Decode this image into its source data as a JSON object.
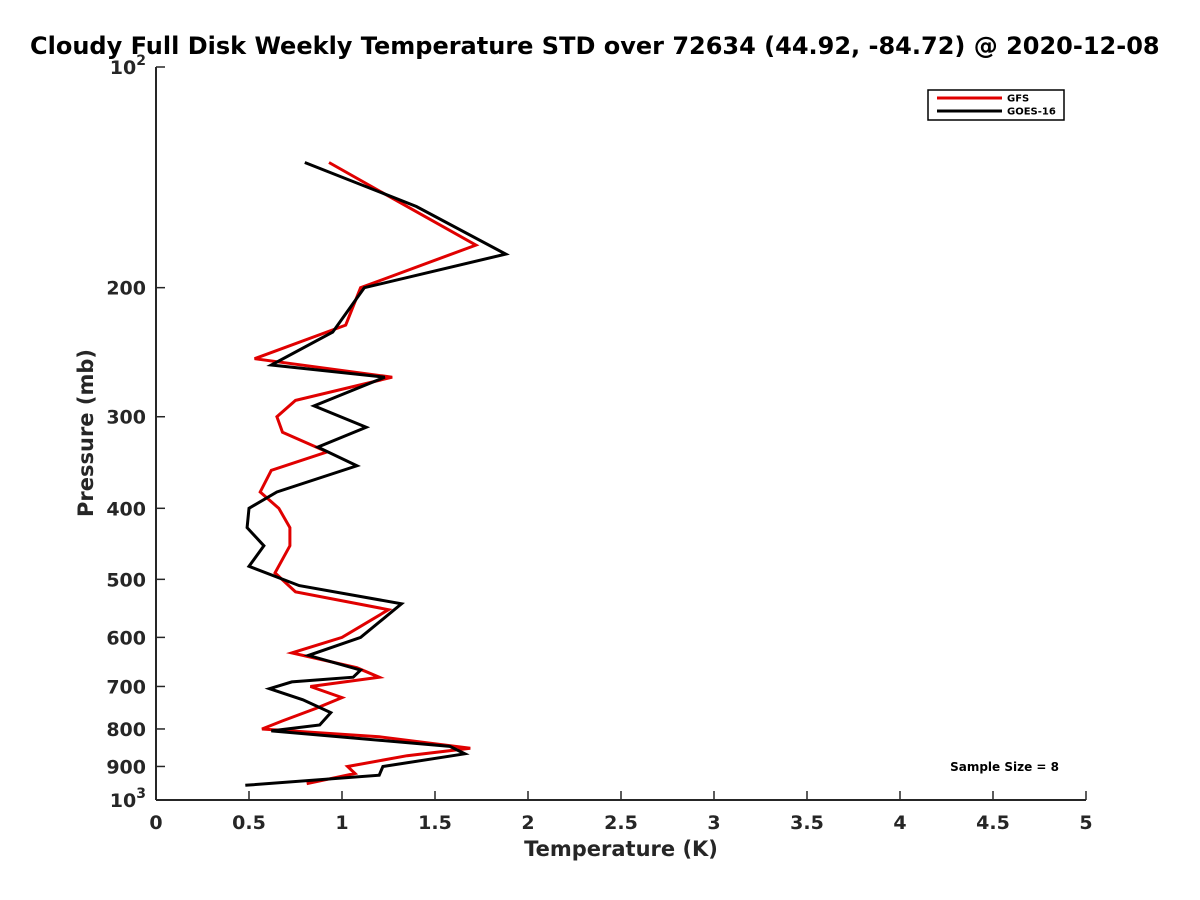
{
  "chart_data": {
    "type": "line",
    "title": "Cloudy Full Disk Weekly Temperature STD over 72634 (44.92, -84.72) @ 2020-12-08",
    "xlabel": "Temperature (K)",
    "ylabel": "Pressure (mb)",
    "xlim": [
      0,
      5
    ],
    "ylim": [
      100,
      1000
    ],
    "y_scale": "log",
    "y_reversed": true,
    "grid": false,
    "legend_position": "top-right",
    "xticks": [
      0,
      0.5,
      1,
      1.5,
      2,
      2.5,
      3,
      3.5,
      4,
      4.5,
      5
    ],
    "xtick_labels": [
      "0",
      "0.5",
      "1",
      "1.5",
      "2",
      "2.5",
      "3",
      "3.5",
      "4",
      "4.5",
      "5"
    ],
    "yticks": [
      100,
      200,
      300,
      400,
      500,
      600,
      700,
      800,
      900,
      1000
    ],
    "ytick_labels": [
      {
        "base": "10",
        "exp": "2"
      },
      {
        "base": "200"
      },
      {
        "base": "300"
      },
      {
        "base": "400"
      },
      {
        "base": "500"
      },
      {
        "base": "600"
      },
      {
        "base": "700"
      },
      {
        "base": "800"
      },
      {
        "base": "900"
      },
      {
        "base": "10",
        "exp": "3"
      }
    ],
    "series": [
      {
        "name": "GFS",
        "color": "#e00000",
        "pressure": [
          135,
          150,
          175,
          200,
          225,
          250,
          265,
          285,
          300,
          315,
          335,
          355,
          380,
          400,
          425,
          450,
          490,
          520,
          550,
          600,
          630,
          660,
          680,
          700,
          725,
          750,
          780,
          800,
          820,
          850,
          870,
          900,
          920,
          950
        ],
        "values": [
          0.93,
          1.25,
          1.72,
          1.1,
          1.02,
          0.53,
          1.27,
          0.75,
          0.65,
          0.68,
          0.92,
          0.62,
          0.56,
          0.66,
          0.72,
          0.72,
          0.64,
          0.75,
          1.25,
          1.0,
          0.73,
          1.08,
          1.2,
          0.83,
          1.0,
          0.86,
          0.68,
          0.57,
          1.2,
          1.69,
          1.35,
          1.03,
          1.07,
          0.81
        ]
      },
      {
        "name": "GOES-16",
        "color": "#000000",
        "pressure": [
          135,
          155,
          180,
          200,
          230,
          255,
          265,
          290,
          310,
          330,
          350,
          380,
          400,
          425,
          450,
          480,
          510,
          540,
          600,
          635,
          665,
          680,
          690,
          705,
          730,
          760,
          790,
          805,
          845,
          865,
          900,
          925,
          955
        ],
        "values": [
          0.8,
          1.4,
          1.88,
          1.12,
          0.95,
          0.62,
          1.23,
          0.85,
          1.13,
          0.87,
          1.08,
          0.65,
          0.5,
          0.49,
          0.58,
          0.5,
          0.77,
          1.32,
          1.1,
          0.82,
          1.1,
          1.06,
          0.73,
          0.61,
          0.79,
          0.94,
          0.88,
          0.62,
          1.58,
          1.66,
          1.22,
          1.2,
          0.48
        ]
      }
    ],
    "annotations": [
      {
        "text": "Sample Size = 8",
        "position": "bottom-right"
      }
    ]
  }
}
